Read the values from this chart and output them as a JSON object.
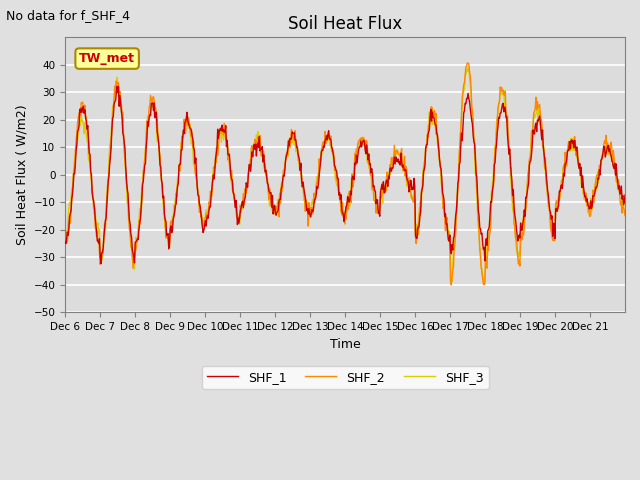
{
  "title": "Soil Heat Flux",
  "ylabel": "Soil Heat Flux ( W/m2)",
  "xlabel": "Time",
  "annotation_text": "No data for f_SHF_4",
  "legend_label": "TW_met",
  "ylim": [
    -50,
    50
  ],
  "yticks": [
    -50,
    -40,
    -30,
    -20,
    -10,
    0,
    10,
    20,
    30,
    40
  ],
  "xtick_labels": [
    "Dec 6",
    "Dec 7",
    "Dec 8",
    "Dec 9",
    "Dec 10",
    "Dec 11",
    "Dec 12",
    "Dec 13",
    "Dec 14",
    "Dec 15",
    "Dec 16",
    "Dec 17",
    "Dec 18",
    "Dec 19",
    "Dec 20",
    "Dec 21"
  ],
  "series_colors": [
    "#cc0000",
    "#ff8800",
    "#ddcc00"
  ],
  "series_names": [
    "SHF_1",
    "SHF_2",
    "SHF_3"
  ],
  "bg_color": "#dcdcdc",
  "grid_color": "#ffffff"
}
